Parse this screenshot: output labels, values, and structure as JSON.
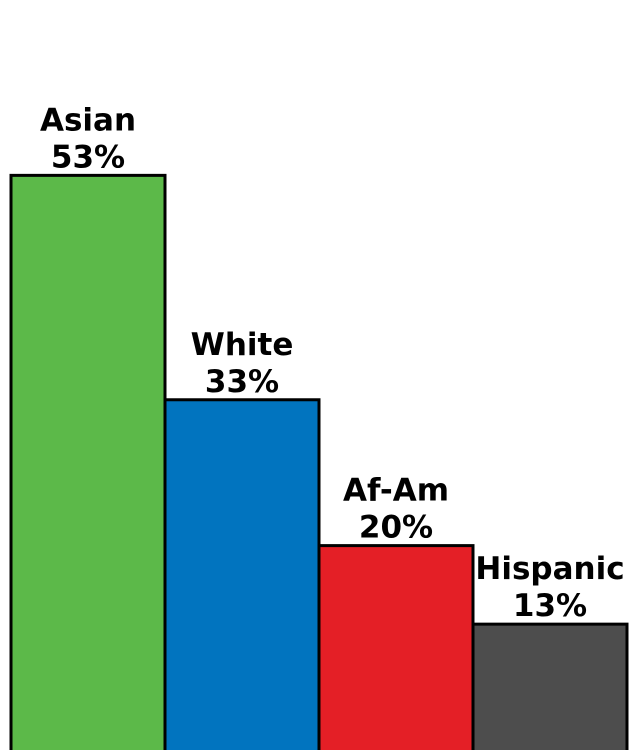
{
  "chart_data": {
    "type": "bar",
    "categories": [
      "Asian",
      "White",
      "Af-Am",
      "Hispanic"
    ],
    "values": [
      53,
      33,
      20,
      13
    ],
    "value_labels": [
      "53%",
      "33%",
      "20%",
      "13%"
    ],
    "unit": "%",
    "colors": [
      "#5cb949",
      "#0174bf",
      "#e41f26",
      "#4d4d4d"
    ],
    "title": "",
    "xlabel": "",
    "ylabel": "",
    "ylim": [
      0,
      61.5
    ],
    "grid": false,
    "legend": "none"
  }
}
